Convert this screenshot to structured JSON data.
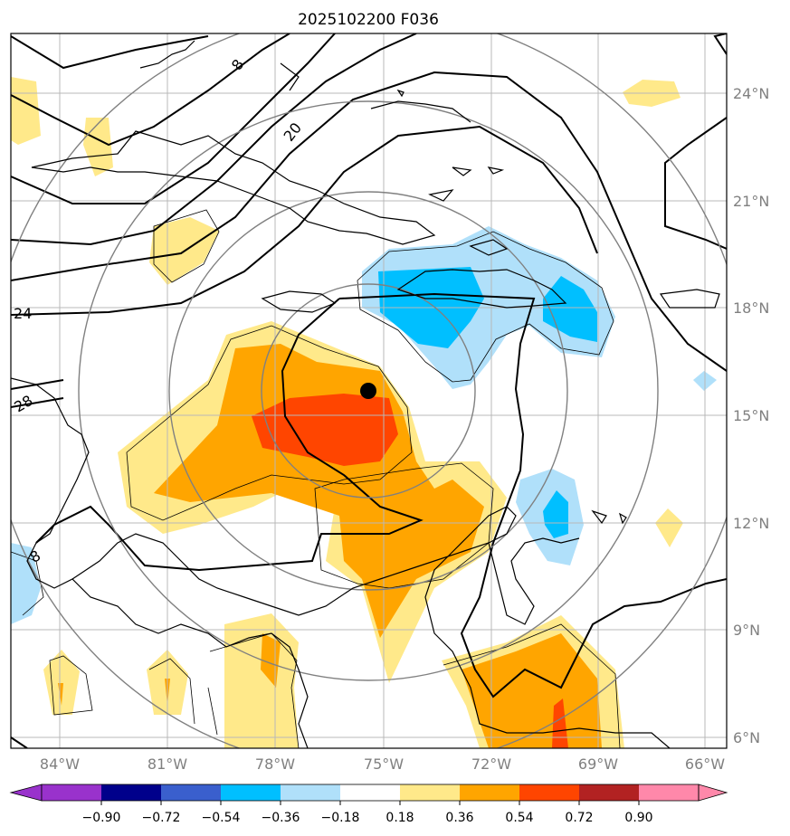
{
  "title": "2025102200 F036",
  "longitude_labels": [
    "84°W",
    "81°W",
    "78°W",
    "75°W",
    "72°W",
    "69°W",
    "66°W"
  ],
  "latitude_labels": [
    "24°N",
    "21°N",
    "18°N",
    "15°N",
    "12°N",
    "9°N",
    "6°N"
  ],
  "contour_labels": [
    "8",
    "20",
    "24",
    "28",
    "8"
  ],
  "colorbar": {
    "tick_labels": [
      "−0.90",
      "−0.72",
      "−0.54",
      "−0.36",
      "−0.18",
      "0.18",
      "0.36",
      "0.54",
      "0.72",
      "0.90"
    ],
    "colors": [
      "#9932cc",
      "#00008b",
      "#3a5fcd",
      "#00bfff",
      "#b0e0fa",
      "#ffffff",
      "#ffe98a",
      "#ffa500",
      "#ff4500",
      "#b22222",
      "#ff88aa"
    ]
  },
  "shading_colors": {
    "light_yellow": "#ffe98a",
    "orange": "#ffa500",
    "red_orange": "#ff4500",
    "light_blue": "#b0e0fa",
    "deep_sky_blue": "#00bfff"
  },
  "storm_center": {
    "lon": -75.4,
    "lat": 15.7
  }
}
